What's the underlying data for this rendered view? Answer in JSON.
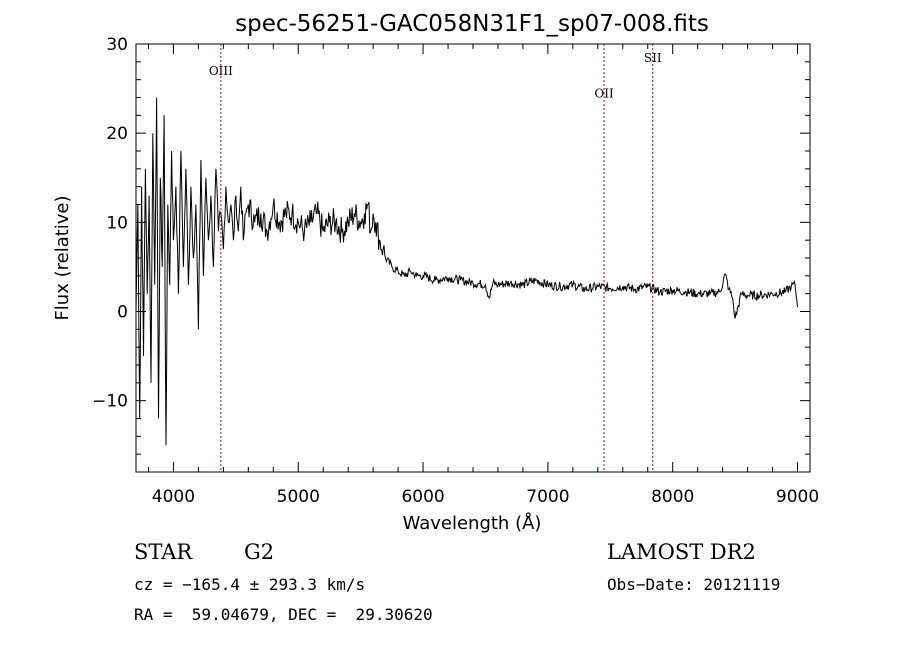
{
  "chart_data": {
    "type": "line",
    "title": "spec-56251-GAC058N31F1_sp07-008.fits",
    "xlabel": "Wavelength (Å)",
    "ylabel": "Flux (relative)",
    "xlim": [
      3700,
      9100
    ],
    "ylim": [
      -18,
      30
    ],
    "x_ticks": [
      {
        "value": 4000,
        "label": "4000"
      },
      {
        "value": 5000,
        "label": "5000"
      },
      {
        "value": 6000,
        "label": "6000"
      },
      {
        "value": 7000,
        "label": "7000"
      },
      {
        "value": 8000,
        "label": "8000"
      },
      {
        "value": 9000,
        "label": "9000"
      }
    ],
    "y_ticks": [
      {
        "value": -10,
        "label": "−10"
      },
      {
        "value": 0,
        "label": "0"
      },
      {
        "value": 10,
        "label": "10"
      },
      {
        "value": 20,
        "label": "20"
      },
      {
        "value": 30,
        "label": "30"
      }
    ],
    "emission_lines": [
      {
        "label": "OIII",
        "x": 4380,
        "label_y": 26.5
      },
      {
        "label": "OII",
        "x": 7450,
        "label_y": 24.0
      },
      {
        "label": "SII",
        "x": 7840,
        "label_y": 28.0
      }
    ],
    "series": [
      {
        "name": "flux",
        "x": [
          3700,
          3715,
          3730,
          3745,
          3760,
          3775,
          3790,
          3805,
          3820,
          3835,
          3850,
          3865,
          3880,
          3895,
          3910,
          3925,
          3940,
          3955,
          3970,
          3985,
          4000,
          4020,
          4040,
          4060,
          4080,
          4100,
          4120,
          4140,
          4160,
          4180,
          4200,
          4220,
          4240,
          4260,
          4280,
          4300,
          4320,
          4340,
          4360,
          4380,
          4400,
          4420,
          4440,
          4460,
          4480,
          4500,
          4520,
          4540,
          4560,
          4580,
          4600,
          4650,
          4700,
          4750,
          4800,
          4850,
          4900,
          4950,
          5000,
          5050,
          5100,
          5150,
          5200,
          5250,
          5300,
          5350,
          5400,
          5450,
          5500,
          5530,
          5560,
          5580,
          5600,
          5620,
          5650,
          5680,
          5700,
          5750,
          5800,
          5850,
          5900,
          5950,
          6000,
          6100,
          6200,
          6300,
          6400,
          6500,
          6530,
          6560,
          6600,
          6700,
          6800,
          6900,
          7000,
          7100,
          7200,
          7300,
          7400,
          7500,
          7600,
          7700,
          7800,
          7900,
          8000,
          8100,
          8200,
          8300,
          8380,
          8420,
          8450,
          8480,
          8500,
          8550,
          8600,
          8700,
          8800,
          8900,
          8950,
          8980,
          9000
        ],
        "y": [
          0,
          12,
          -12,
          14,
          -5,
          16,
          2,
          13,
          -8,
          20,
          3,
          24,
          -12,
          15,
          5,
          22,
          -15,
          12,
          3,
          18,
          8,
          14,
          2,
          18,
          5,
          16,
          3,
          14,
          6,
          12,
          -2,
          17,
          4,
          15,
          8,
          13,
          5,
          16,
          9,
          11,
          7,
          14,
          10,
          12,
          8,
          13,
          9,
          14,
          8,
          11,
          12,
          10,
          11,
          9,
          12,
          10,
          11,
          11,
          10,
          9,
          10,
          11,
          9,
          10,
          10,
          9,
          10,
          11,
          10,
          11,
          12,
          9,
          11,
          10,
          8,
          7,
          6,
          5,
          4.5,
          4,
          4.5,
          4,
          4,
          3.5,
          3.8,
          3.5,
          3.2,
          3,
          1.5,
          3.2,
          3,
          3.2,
          3,
          3.5,
          3,
          2.8,
          3,
          2.5,
          2.8,
          2.6,
          2.8,
          2.5,
          2.8,
          2.2,
          2.4,
          2.2,
          2.0,
          2.0,
          2.2,
          4.2,
          2.5,
          1.5,
          -0.8,
          2.0,
          1.8,
          1.8,
          2.0,
          2.2,
          2.8,
          3.0,
          0.5
        ]
      }
    ]
  },
  "info": {
    "class": "STAR",
    "subclass": "G2",
    "survey": "LAMOST DR2",
    "cz": "cz = −165.4 ± 293.3 km/s",
    "obs_date": "Obs−Date: 20121119",
    "radec": "RA =  59.04679, DEC =  29.30620"
  }
}
